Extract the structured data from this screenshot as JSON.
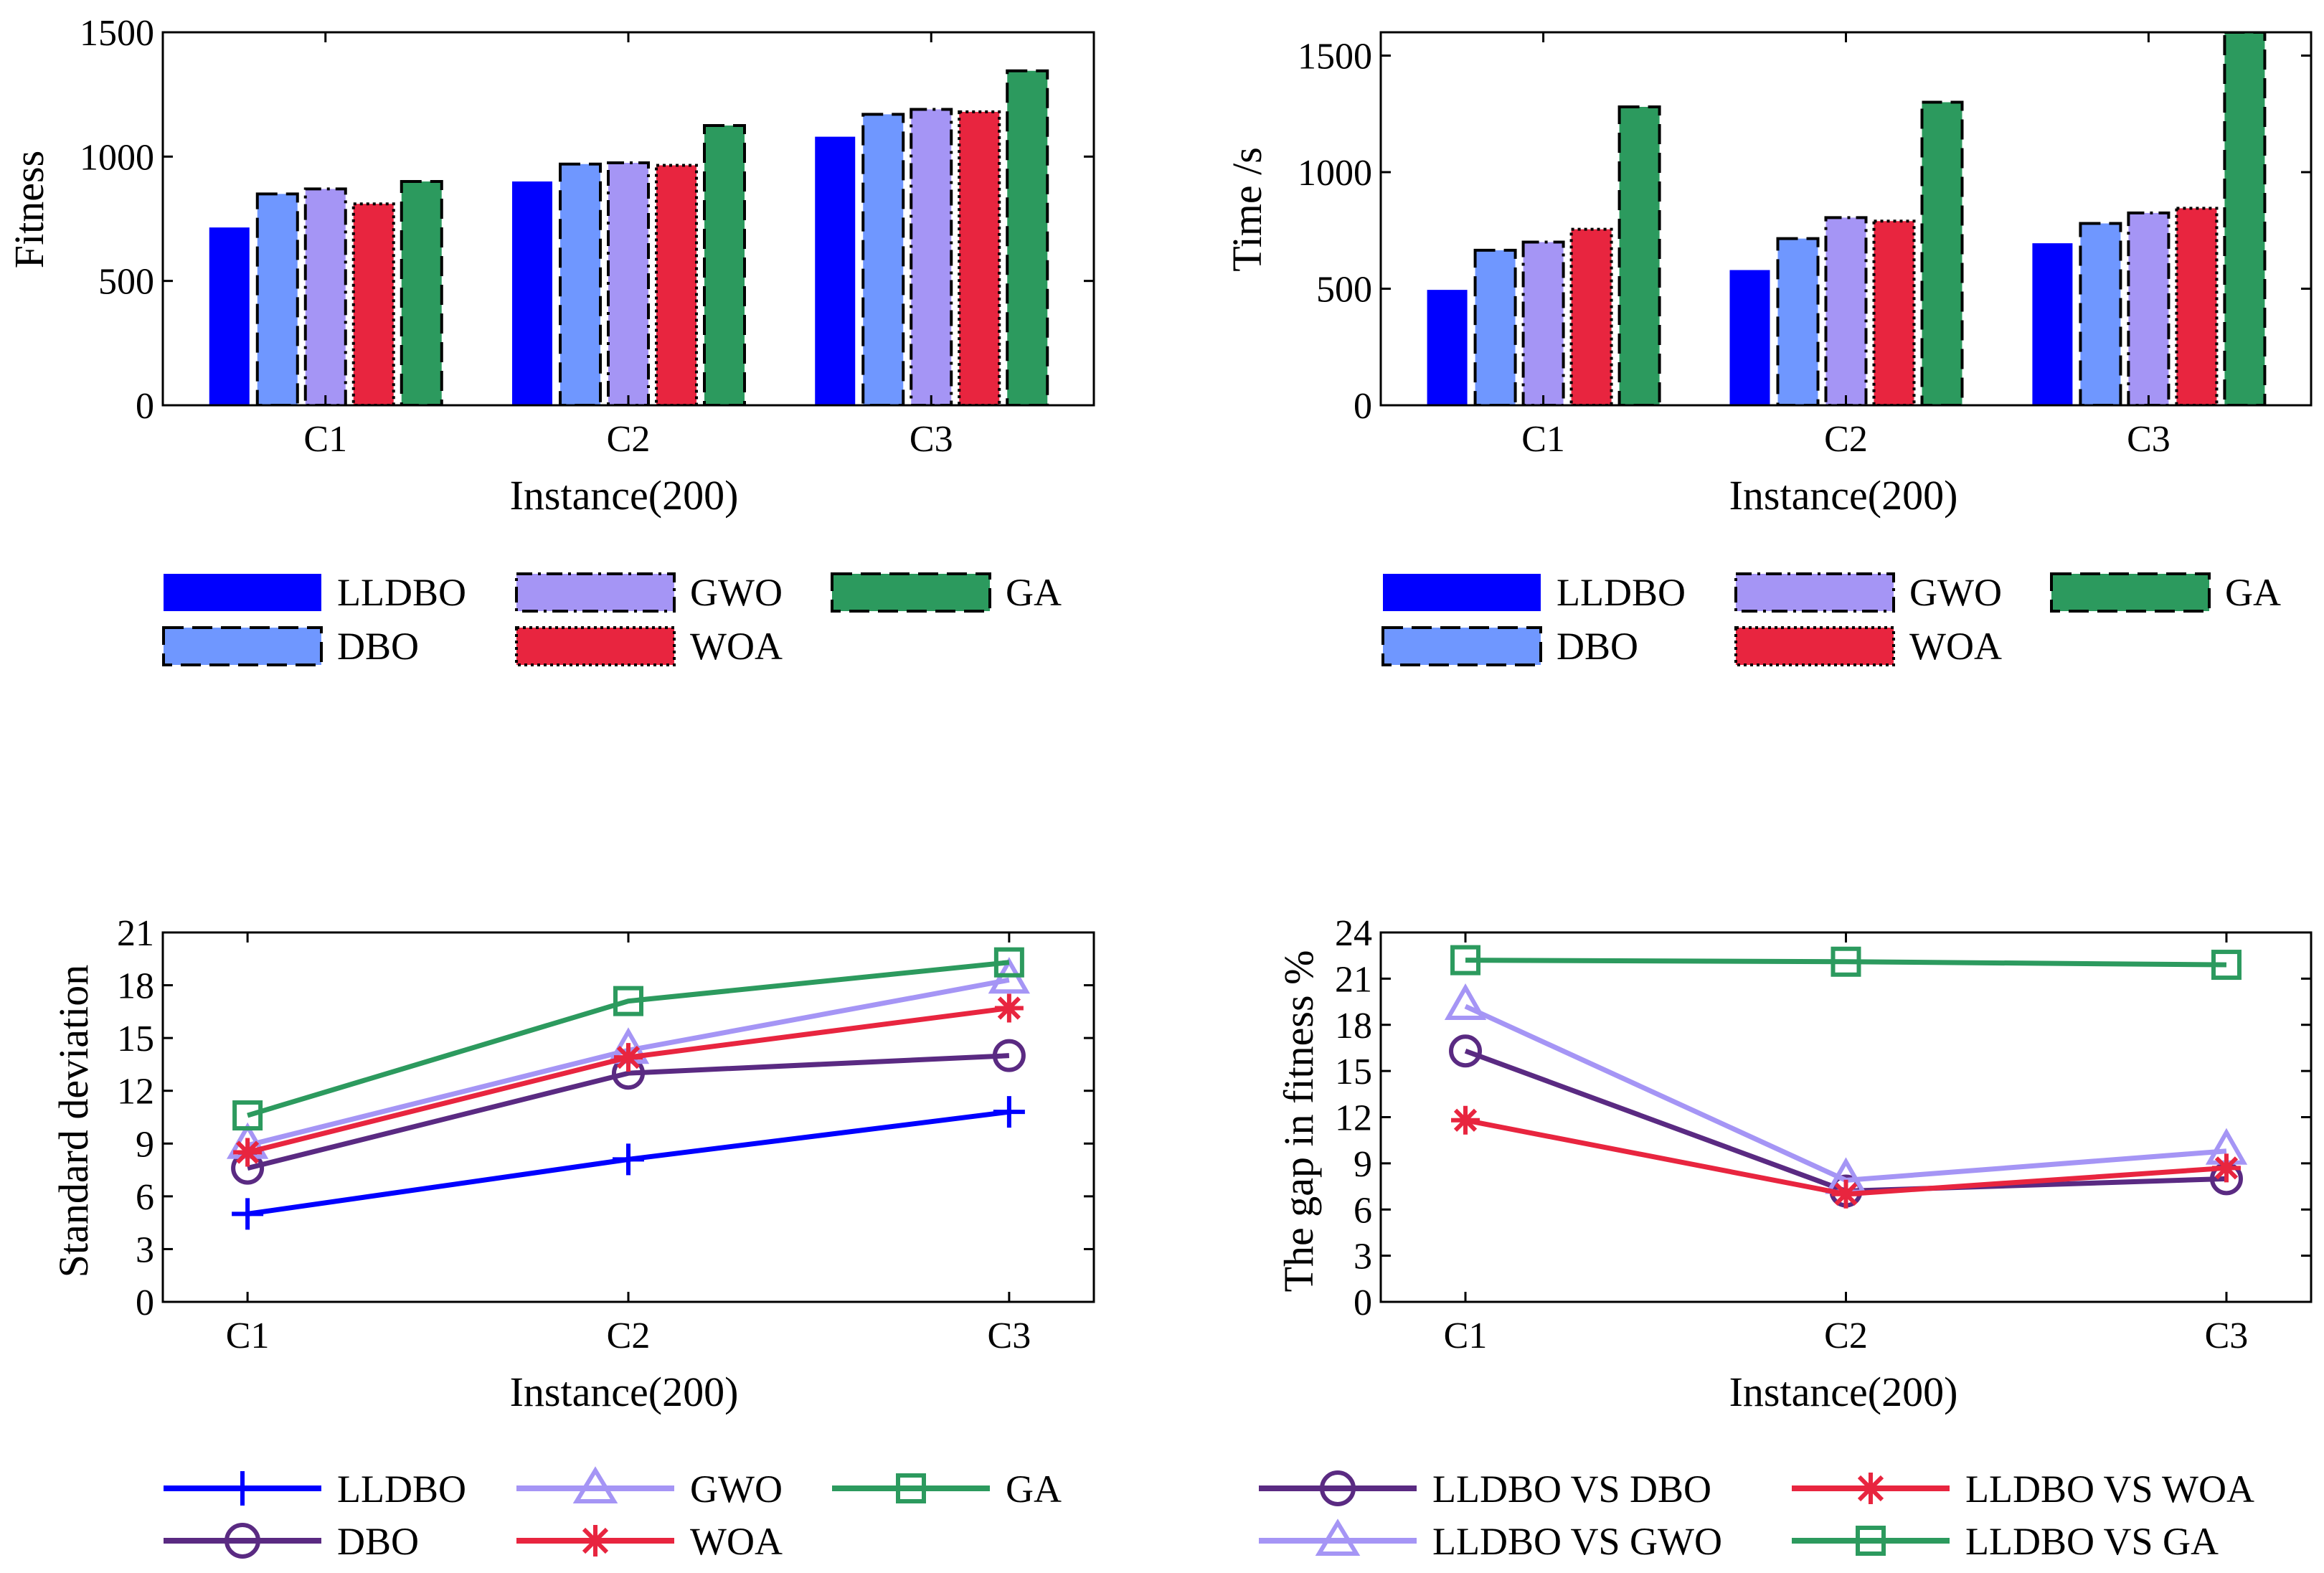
{
  "chart_data": [
    {
      "id": "fitness",
      "type": "bar",
      "xlabel": "Instance(200)",
      "ylabel": "Fitness",
      "ylim": [
        0,
        1500
      ],
      "yticks": [
        0,
        500,
        1000,
        1500
      ],
      "categories": [
        "C1",
        "C2",
        "C3"
      ],
      "series": [
        {
          "name": "LLDBO",
          "values": [
            715,
            900,
            1080
          ]
        },
        {
          "name": "DBO",
          "values": [
            850,
            970,
            1170
          ]
        },
        {
          "name": "GWO",
          "values": [
            870,
            975,
            1190
          ]
        },
        {
          "name": "WOA",
          "values": [
            810,
            965,
            1180
          ]
        },
        {
          "name": "GA",
          "values": [
            900,
            1125,
            1345
          ]
        }
      ]
    },
    {
      "id": "time",
      "type": "bar",
      "xlabel": "Instance(200)",
      "ylabel": "Time /s",
      "ylim": [
        0,
        1600
      ],
      "yticks": [
        0,
        500,
        1000,
        1500
      ],
      "categories": [
        "C1",
        "C2",
        "C3"
      ],
      "series": [
        {
          "name": "LLDBO",
          "values": [
            495,
            580,
            695
          ]
        },
        {
          "name": "DBO",
          "values": [
            665,
            715,
            780
          ]
        },
        {
          "name": "GWO",
          "values": [
            700,
            805,
            825
          ]
        },
        {
          "name": "WOA",
          "values": [
            755,
            790,
            845
          ]
        },
        {
          "name": "GA",
          "values": [
            1280,
            1300,
            1600
          ]
        }
      ]
    },
    {
      "id": "stddev",
      "type": "line",
      "xlabel": "Instance(200)",
      "ylabel": "Standard deviation",
      "ylim": [
        0,
        21
      ],
      "yticks": [
        0,
        3,
        6,
        9,
        12,
        15,
        18,
        21
      ],
      "categories": [
        "C1",
        "C2",
        "C3"
      ],
      "series": [
        {
          "name": "LLDBO",
          "values": [
            5.0,
            8.1,
            10.8
          ]
        },
        {
          "name": "DBO",
          "values": [
            7.6,
            13.0,
            14.0
          ]
        },
        {
          "name": "GWO",
          "values": [
            8.9,
            14.3,
            18.3
          ]
        },
        {
          "name": "WOA",
          "values": [
            8.5,
            13.9,
            16.7
          ]
        },
        {
          "name": "GA",
          "values": [
            10.6,
            17.1,
            19.3
          ]
        }
      ]
    },
    {
      "id": "gap",
      "type": "line",
      "xlabel": "Instance(200)",
      "ylabel": "The gap in fitness %",
      "ylim": [
        0,
        24
      ],
      "yticks": [
        0,
        3,
        6,
        9,
        12,
        15,
        18,
        21,
        24
      ],
      "categories": [
        "C1",
        "C2",
        "C3"
      ],
      "series": [
        {
          "name": "LLDBO VS DBO",
          "values": [
            16.3,
            7.2,
            8.0
          ]
        },
        {
          "name": "LLDBO VS GWO",
          "values": [
            19.2,
            7.9,
            9.8
          ]
        },
        {
          "name": "LLDBO VS WOA",
          "values": [
            11.8,
            7.0,
            8.7
          ]
        },
        {
          "name": "LLDBO VS GA",
          "values": [
            22.2,
            22.1,
            21.9
          ]
        }
      ]
    }
  ],
  "colors": {
    "LLDBO": "#0000ff",
    "DBO_bar": "#6f97ff",
    "GWO_bar": "#a595f5",
    "WOA": "#e8253f",
    "GA": "#2c9a5e",
    "DBO_line": "#5a2a82",
    "GWO_line": "#a595f5"
  }
}
